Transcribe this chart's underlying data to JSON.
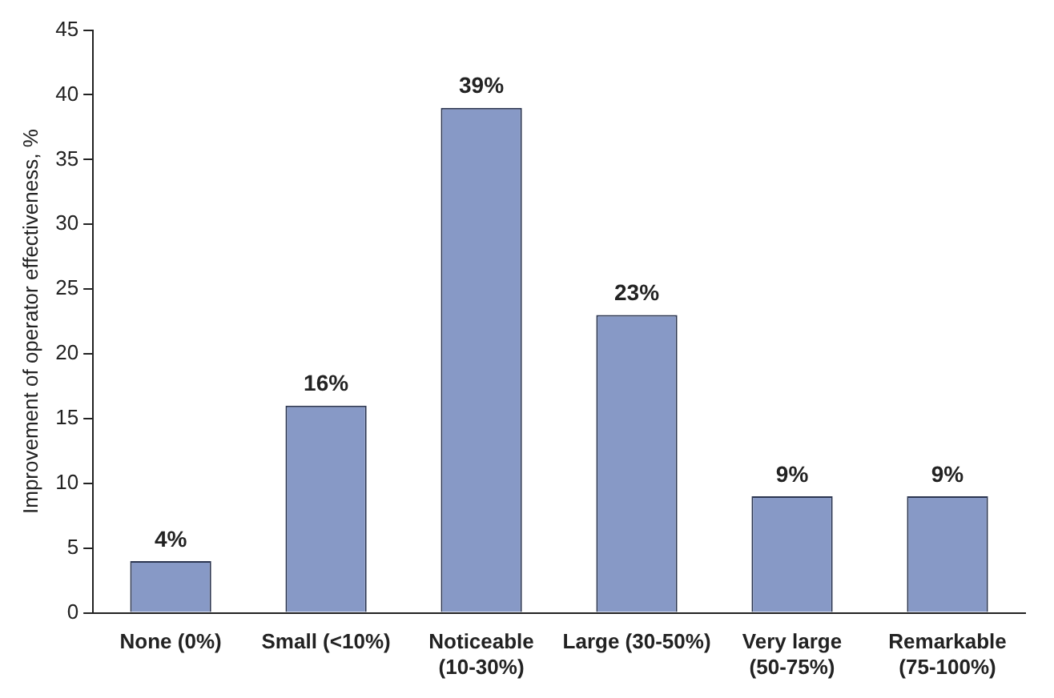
{
  "chart_data": {
    "type": "bar",
    "ylabel": "Improvement of operator effectiveness, %",
    "categories": [
      "None (0%)",
      "Small (<10%)",
      "Noticeable (10-30%)",
      "Large (30-50%)",
      "Very large (50-75%)",
      "Remarkable (75-100%)"
    ],
    "values": [
      4,
      16,
      39,
      23,
      9,
      9
    ],
    "value_labels": [
      "4%",
      "16%",
      "39%",
      "23%",
      "9%",
      "9%"
    ],
    "color": "#8799c6",
    "ylim": [
      0,
      45
    ],
    "yticks": [
      0,
      5,
      10,
      15,
      20,
      25,
      30,
      35,
      40,
      45
    ],
    "grid": false,
    "legend": false
  }
}
